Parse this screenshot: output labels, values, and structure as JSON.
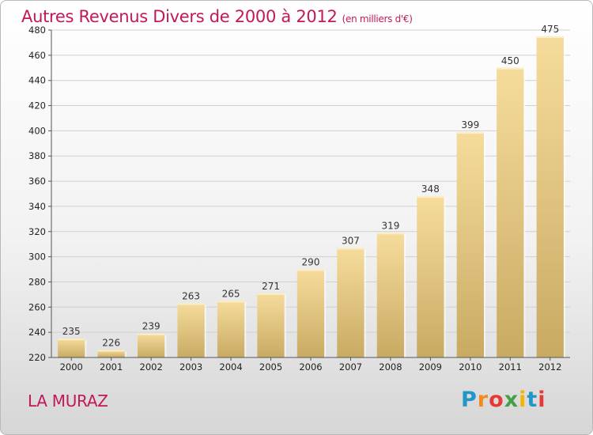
{
  "chart_data": {
    "type": "bar",
    "title": "Autres Revenus Divers de 2000 à 2012",
    "subtitle": "(en milliers d'€)",
    "categories": [
      "2000",
      "2001",
      "2002",
      "2003",
      "2004",
      "2005",
      "2006",
      "2007",
      "2008",
      "2009",
      "2010",
      "2011",
      "2012"
    ],
    "values": [
      235,
      226,
      239,
      263,
      265,
      271,
      290,
      307,
      319,
      348,
      399,
      450,
      475
    ],
    "ylim": [
      220,
      480
    ],
    "yticks": [
      220,
      240,
      260,
      280,
      300,
      320,
      340,
      360,
      380,
      400,
      420,
      440,
      460,
      480
    ],
    "grid": true,
    "bar_color": "#e8cc83"
  },
  "location": "LA MURAZ",
  "logo": {
    "letters": [
      "P",
      "r",
      "o",
      "x",
      "i",
      "t",
      "i"
    ],
    "colors": [
      "#2196c8",
      "#f28a1c",
      "#e53935",
      "#43a047",
      "#f5b400",
      "#2196c8",
      "#e53935"
    ]
  }
}
